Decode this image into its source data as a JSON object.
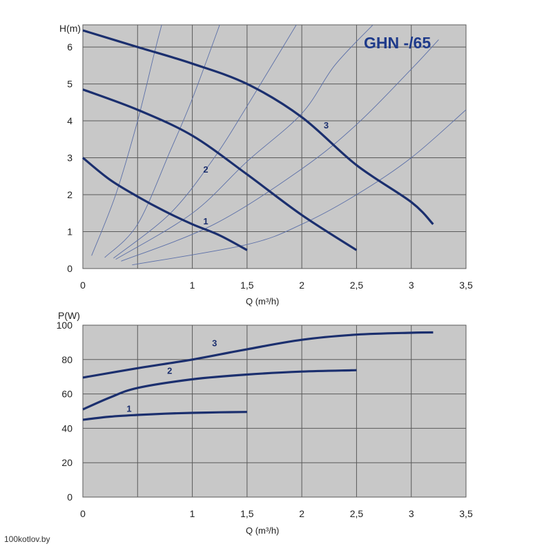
{
  "watermark": "100kotlov.by",
  "colors": {
    "plot_bg": "#c8c8c8",
    "grid": "#5a5a5a",
    "curve": "#1b2f6e",
    "system": "#5b6fa8"
  },
  "chart_data": [
    {
      "type": "line",
      "title": "GHN -/65",
      "xlabel": "Q (m³/h)",
      "ylabel": "H(m)",
      "xlim": [
        0,
        3.5
      ],
      "ylim": [
        0,
        6.6
      ],
      "xticks": [
        0,
        0.5,
        1,
        1.5,
        2,
        2.5,
        3,
        3.5
      ],
      "xtick_labels": [
        "0",
        "",
        "1",
        "1,5",
        "2",
        "2,5",
        "3",
        "3,5"
      ],
      "yticks": [
        0,
        1,
        2,
        3,
        4,
        5,
        6
      ],
      "ytick_labels": [
        "0",
        "1",
        "2",
        "3",
        "4",
        "5",
        "6"
      ],
      "grid": true,
      "series": [
        {
          "name": "1",
          "points": [
            [
              0,
              3.0
            ],
            [
              0.25,
              2.4
            ],
            [
              0.5,
              1.95
            ],
            [
              0.75,
              1.55
            ],
            [
              1.0,
              1.2
            ],
            [
              1.25,
              0.9
            ],
            [
              1.5,
              0.5
            ]
          ],
          "label_at": [
            1.1,
            1.2
          ]
        },
        {
          "name": "2",
          "points": [
            [
              0,
              4.85
            ],
            [
              0.5,
              4.3
            ],
            [
              1.0,
              3.6
            ],
            [
              1.5,
              2.55
            ],
            [
              2.0,
              1.45
            ],
            [
              2.5,
              0.5
            ]
          ],
          "label_at": [
            1.1,
            2.6
          ]
        },
        {
          "name": "3",
          "points": [
            [
              0,
              6.45
            ],
            [
              0.5,
              6.0
            ],
            [
              1.0,
              5.55
            ],
            [
              1.5,
              5.0
            ],
            [
              2.0,
              4.1
            ],
            [
              2.5,
              2.8
            ],
            [
              3.0,
              1.8
            ],
            [
              3.2,
              1.2
            ]
          ],
          "label_at": [
            2.2,
            3.8
          ]
        }
      ],
      "system_curves": [
        {
          "points": [
            [
              0.08,
              0.35
            ],
            [
              0.3,
              2.0
            ],
            [
              0.5,
              4.0
            ],
            [
              0.65,
              5.8
            ],
            [
              0.72,
              6.6
            ]
          ]
        },
        {
          "points": [
            [
              0.2,
              0.3
            ],
            [
              0.5,
              1.2
            ],
            [
              0.8,
              3.2
            ],
            [
              1.0,
              4.6
            ],
            [
              1.25,
              6.6
            ]
          ]
        },
        {
          "points": [
            [
              0.28,
              0.28
            ],
            [
              0.8,
              1.5
            ],
            [
              1.2,
              3.0
            ],
            [
              1.5,
              4.4
            ],
            [
              1.95,
              6.6
            ]
          ]
        },
        {
          "points": [
            [
              0.3,
              0.25
            ],
            [
              1.0,
              1.5
            ],
            [
              1.5,
              2.9
            ],
            [
              2.0,
              4.2
            ],
            [
              2.3,
              5.5
            ],
            [
              2.65,
              6.6
            ]
          ]
        },
        {
          "points": [
            [
              0.35,
              0.2
            ],
            [
              1.2,
              1.2
            ],
            [
              2.0,
              2.7
            ],
            [
              2.5,
              3.9
            ],
            [
              3.0,
              5.4
            ],
            [
              3.25,
              6.2
            ]
          ]
        },
        {
          "points": [
            [
              0.45,
              0.1
            ],
            [
              1.5,
              0.65
            ],
            [
              2.0,
              1.2
            ],
            [
              2.5,
              2.0
            ],
            [
              3.0,
              3.0
            ],
            [
              3.5,
              4.3
            ]
          ]
        }
      ]
    },
    {
      "type": "line",
      "xlabel": "Q (m³/h)",
      "ylabel": "P(W)",
      "xlim": [
        0,
        3.5
      ],
      "ylim": [
        0,
        100
      ],
      "xticks": [
        0,
        0.5,
        1,
        1.5,
        2,
        2.5,
        3,
        3.5
      ],
      "xtick_labels": [
        "0",
        "",
        "1",
        "1,5",
        "2",
        "2,5",
        "3",
        "3,5"
      ],
      "yticks": [
        0,
        20,
        40,
        60,
        80,
        100
      ],
      "ytick_labels": [
        "0",
        "20",
        "40",
        "60",
        "80",
        "100"
      ],
      "grid": true,
      "series": [
        {
          "name": "1",
          "points": [
            [
              0,
              45
            ],
            [
              0.25,
              46.8
            ],
            [
              0.5,
              47.8
            ],
            [
              0.75,
              48.5
            ],
            [
              1.0,
              49
            ],
            [
              1.25,
              49.3
            ],
            [
              1.5,
              49.5
            ]
          ],
          "label_at": [
            0.4,
            49.6
          ]
        },
        {
          "name": "2",
          "points": [
            [
              0,
              51
            ],
            [
              0.25,
              58
            ],
            [
              0.5,
              63.5
            ],
            [
              1.0,
              68.5
            ],
            [
              1.5,
              71.3
            ],
            [
              2.0,
              73
            ],
            [
              2.5,
              73.8
            ]
          ],
          "label_at": [
            0.77,
            71.6
          ]
        },
        {
          "name": "3",
          "points": [
            [
              0,
              69.5
            ],
            [
              0.5,
              75
            ],
            [
              1.0,
              80
            ],
            [
              1.5,
              86
            ],
            [
              2.0,
              91.5
            ],
            [
              2.5,
              94.5
            ],
            [
              3.0,
              95.6
            ],
            [
              3.2,
              95.8
            ]
          ],
          "label_at": [
            1.18,
            87.8
          ]
        }
      ]
    }
  ]
}
